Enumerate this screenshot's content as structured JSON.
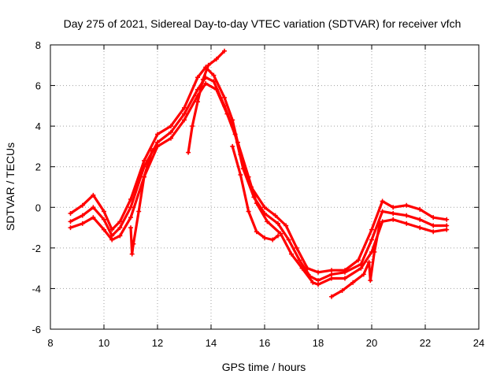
{
  "chart_data": {
    "type": "scatter",
    "title": "Day 275 of 2021, Sidereal Day-to-day VTEC variation (SDTVAR) for receiver vfch",
    "xlabel": "GPS time / hours",
    "ylabel": "SDTVAR / TECUs",
    "xlim": [
      8,
      24
    ],
    "ylim": [
      -6,
      8
    ],
    "xticks": [
      8,
      10,
      12,
      14,
      16,
      18,
      20,
      22,
      24
    ],
    "yticks": [
      -6,
      -4,
      -2,
      0,
      2,
      4,
      6,
      8
    ],
    "grid": true,
    "marker": "+",
    "color": "#ff0000",
    "series": [
      {
        "name": "track-1",
        "points": [
          [
            8.75,
            -0.3
          ],
          [
            9.2,
            0.1
          ],
          [
            9.6,
            0.6
          ],
          [
            10.0,
            -0.2
          ],
          [
            10.3,
            -1.1
          ],
          [
            10.6,
            -0.7
          ],
          [
            11.0,
            0.4
          ],
          [
            11.5,
            2.3
          ],
          [
            12.0,
            3.6
          ],
          [
            12.5,
            4.0
          ],
          [
            13.0,
            4.9
          ],
          [
            13.5,
            6.4
          ],
          [
            13.8,
            6.9
          ],
          [
            14.1,
            6.5
          ],
          [
            14.5,
            5.4
          ],
          [
            14.8,
            4.3
          ],
          [
            15.1,
            2.6
          ],
          [
            15.5,
            1.0
          ],
          [
            16.0,
            0.0
          ],
          [
            16.4,
            -0.4
          ],
          [
            16.8,
            -0.9
          ],
          [
            17.2,
            -2.0
          ],
          [
            17.6,
            -3.0
          ],
          [
            18.0,
            -3.2
          ],
          [
            18.5,
            -3.1
          ],
          [
            19.0,
            -3.1
          ],
          [
            19.5,
            -2.6
          ],
          [
            20.0,
            -1.1
          ],
          [
            20.4,
            0.3
          ],
          [
            20.8,
            0.0
          ],
          [
            21.3,
            0.1
          ],
          [
            21.8,
            -0.1
          ],
          [
            22.3,
            -0.5
          ],
          [
            22.8,
            -0.6
          ]
        ]
      },
      {
        "name": "track-2",
        "points": [
          [
            8.75,
            -0.7
          ],
          [
            9.2,
            -0.4
          ],
          [
            9.6,
            0.0
          ],
          [
            10.0,
            -0.6
          ],
          [
            10.3,
            -1.4
          ],
          [
            10.6,
            -1.0
          ],
          [
            11.0,
            0.0
          ],
          [
            11.5,
            2.0
          ],
          [
            12.0,
            3.2
          ],
          [
            12.5,
            3.7
          ],
          [
            13.0,
            4.6
          ],
          [
            13.5,
            5.8
          ],
          [
            13.8,
            6.4
          ],
          [
            14.1,
            6.2
          ],
          [
            14.5,
            5.0
          ],
          [
            14.9,
            3.6
          ],
          [
            15.2,
            1.9
          ],
          [
            15.6,
            0.5
          ],
          [
            16.0,
            -0.3
          ],
          [
            16.5,
            -0.8
          ],
          [
            16.9,
            -1.6
          ],
          [
            17.3,
            -2.6
          ],
          [
            17.7,
            -3.4
          ],
          [
            18.0,
            -3.6
          ],
          [
            18.5,
            -3.3
          ],
          [
            19.0,
            -3.2
          ],
          [
            19.6,
            -2.8
          ],
          [
            20.0,
            -1.6
          ],
          [
            20.4,
            -0.2
          ],
          [
            20.8,
            -0.3
          ],
          [
            21.3,
            -0.4
          ],
          [
            21.8,
            -0.6
          ],
          [
            22.3,
            -0.9
          ],
          [
            22.8,
            -0.9
          ]
        ]
      },
      {
        "name": "track-3",
        "points": [
          [
            8.75,
            -1.0
          ],
          [
            9.2,
            -0.8
          ],
          [
            9.6,
            -0.5
          ],
          [
            10.0,
            -1.1
          ],
          [
            10.3,
            -1.6
          ],
          [
            10.6,
            -1.4
          ],
          [
            11.0,
            -0.5
          ],
          [
            11.5,
            1.5
          ],
          [
            12.0,
            3.0
          ],
          [
            12.5,
            3.4
          ],
          [
            13.0,
            4.3
          ],
          [
            13.5,
            5.5
          ],
          [
            13.8,
            6.1
          ],
          [
            14.2,
            5.8
          ],
          [
            14.6,
            4.6
          ],
          [
            15.0,
            3.2
          ],
          [
            15.4,
            1.5
          ],
          [
            15.7,
            0.2
          ],
          [
            16.1,
            -0.7
          ],
          [
            16.6,
            -1.3
          ],
          [
            17.0,
            -2.3
          ],
          [
            17.4,
            -3.0
          ],
          [
            17.8,
            -3.7
          ],
          [
            18.0,
            -3.8
          ],
          [
            18.5,
            -3.5
          ],
          [
            19.0,
            -3.5
          ],
          [
            19.6,
            -3.0
          ],
          [
            20.0,
            -2.2
          ],
          [
            20.4,
            -0.7
          ],
          [
            20.8,
            -0.6
          ],
          [
            21.3,
            -0.8
          ],
          [
            21.8,
            -1.0
          ],
          [
            22.3,
            -1.2
          ],
          [
            22.8,
            -1.1
          ]
        ]
      },
      {
        "name": "segment-early",
        "points": [
          [
            11.0,
            -1.0
          ],
          [
            11.05,
            -2.3
          ],
          [
            11.1,
            -1.8
          ],
          [
            11.3,
            -0.2
          ],
          [
            11.5,
            1.5
          ],
          [
            11.8,
            2.8
          ]
        ]
      },
      {
        "name": "segment-midday",
        "points": [
          [
            13.15,
            2.7
          ],
          [
            13.3,
            4.0
          ],
          [
            13.5,
            5.2
          ],
          [
            13.7,
            6.3
          ],
          [
            13.9,
            7.0
          ],
          [
            14.2,
            7.3
          ],
          [
            14.5,
            7.7
          ]
        ]
      },
      {
        "name": "segment-afternoon",
        "points": [
          [
            14.8,
            3.0
          ],
          [
            15.1,
            1.6
          ],
          [
            15.4,
            -0.2
          ],
          [
            15.7,
            -1.2
          ],
          [
            16.0,
            -1.5
          ],
          [
            16.3,
            -1.6
          ],
          [
            16.5,
            -1.4
          ]
        ]
      },
      {
        "name": "segment-evening",
        "points": [
          [
            18.5,
            -4.4
          ],
          [
            18.9,
            -4.1
          ],
          [
            19.3,
            -3.7
          ],
          [
            19.7,
            -3.3
          ],
          [
            19.9,
            -2.7
          ],
          [
            19.95,
            -3.6
          ],
          [
            20.1,
            -2.2
          ],
          [
            20.3,
            -0.8
          ]
        ]
      }
    ]
  }
}
